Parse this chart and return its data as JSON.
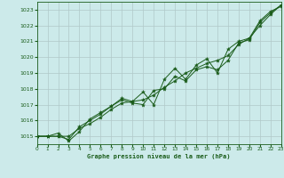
{
  "title": "Graphe pression niveau de la mer (hPa)",
  "bg_color": "#cceaea",
  "grid_color": "#b0c8c8",
  "line_color": "#1a5c1a",
  "x_min": 0,
  "x_max": 23,
  "y_min": 1014.5,
  "y_max": 1023.5,
  "y_ticks": [
    1015,
    1016,
    1017,
    1018,
    1019,
    1020,
    1021,
    1022,
    1023
  ],
  "x_ticks": [
    0,
    1,
    2,
    3,
    4,
    5,
    6,
    7,
    8,
    9,
    10,
    11,
    12,
    13,
    14,
    15,
    16,
    17,
    18,
    19,
    20,
    21,
    22,
    23
  ],
  "series1_x": [
    0,
    1,
    2,
    3,
    4,
    5,
    6,
    7,
    8,
    9,
    10,
    11,
    12,
    13,
    14,
    15,
    16,
    17,
    18,
    19,
    20,
    21,
    22,
    23
  ],
  "series1_y": [
    1015.0,
    1015.0,
    1015.0,
    1015.0,
    1015.5,
    1015.8,
    1016.2,
    1016.7,
    1017.1,
    1017.2,
    1017.3,
    1017.6,
    1018.1,
    1018.5,
    1019.0,
    1019.3,
    1019.6,
    1019.8,
    1020.1,
    1020.8,
    1021.2,
    1022.0,
    1022.7,
    1023.3
  ],
  "series2_x": [
    0,
    1,
    2,
    3,
    4,
    5,
    6,
    7,
    8,
    9,
    10,
    11,
    12,
    13,
    14,
    15,
    16,
    17,
    18,
    19,
    20,
    21,
    22,
    23
  ],
  "series2_y": [
    1015.0,
    1015.0,
    1015.0,
    1014.8,
    1015.6,
    1016.0,
    1016.4,
    1016.9,
    1017.3,
    1017.1,
    1017.0,
    1017.9,
    1018.0,
    1018.8,
    1018.5,
    1019.2,
    1019.4,
    1019.2,
    1019.8,
    1020.9,
    1021.1,
    1022.2,
    1022.8,
    1023.3
  ],
  "series3_x": [
    0,
    1,
    2,
    3,
    4,
    5,
    6,
    7,
    8,
    9,
    10,
    11,
    12,
    13,
    14,
    15,
    16,
    17,
    18,
    19,
    20,
    21,
    22,
    23
  ],
  "series3_y": [
    1015.0,
    1015.0,
    1015.2,
    1014.7,
    1015.3,
    1016.1,
    1016.5,
    1016.9,
    1017.4,
    1017.2,
    1017.8,
    1017.0,
    1018.6,
    1019.3,
    1018.6,
    1019.5,
    1019.9,
    1019.0,
    1020.5,
    1021.0,
    1021.2,
    1022.3,
    1022.9,
    1023.2
  ]
}
